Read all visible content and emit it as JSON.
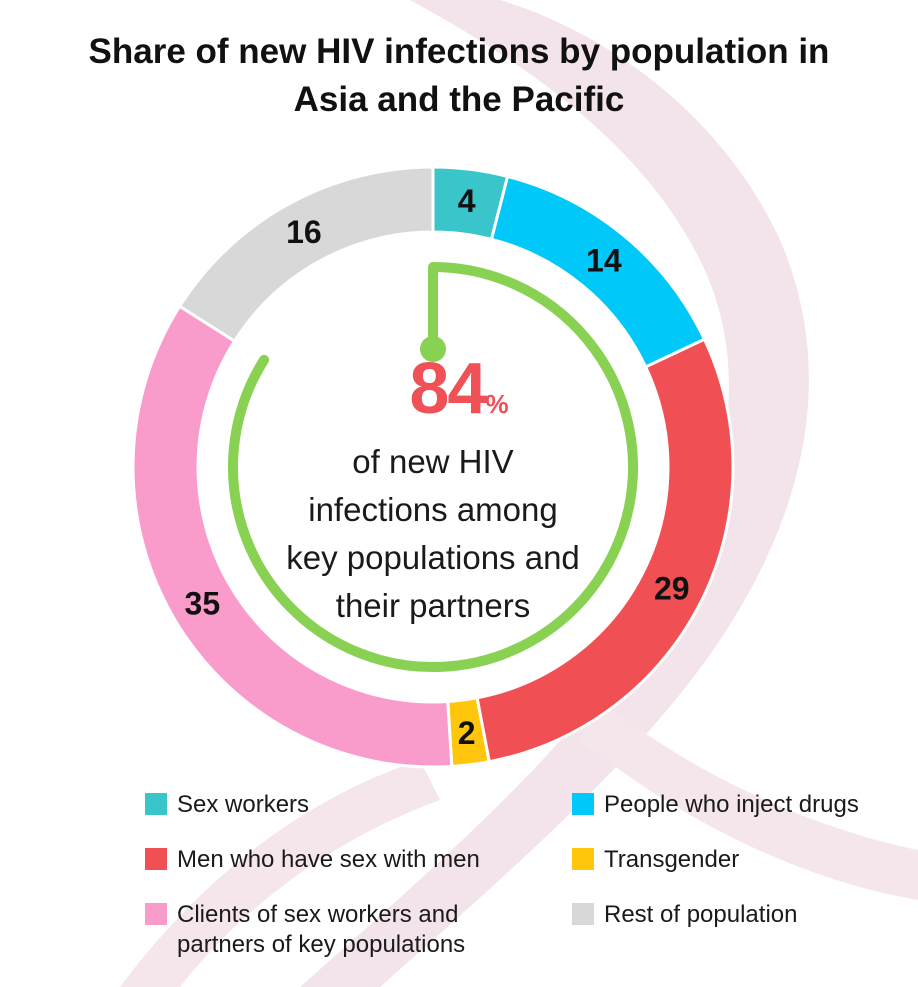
{
  "chart_data": {
    "type": "donut",
    "title_lines": [
      "Share of new HIV infections by population in",
      "Asia and the Pacific"
    ],
    "categories": [
      "Sex workers",
      "People who inject drugs",
      "Men who have sex with men",
      "Transgender",
      "Clients of sex workers and partners of key populations",
      "Rest of population"
    ],
    "values": [
      4,
      14,
      29,
      2,
      35,
      16
    ],
    "colors": [
      "#39c5c9",
      "#00c8f8",
      "#f05053",
      "#ffc60b",
      "#fa9ccb",
      "#d8d8d8"
    ],
    "highlight": {
      "value": "84",
      "unit": "%",
      "text_lines": [
        "of new HIV",
        "infections among",
        "key populations and",
        "their partners"
      ],
      "arc_fraction": 0.84,
      "color": "#89d152",
      "value_color": "#ef5157"
    },
    "legend": [
      {
        "lines": [
          "Sex workers"
        ],
        "color": "#39c5c9"
      },
      {
        "lines": [
          "People who inject drugs"
        ],
        "color": "#00c8f8"
      },
      {
        "lines": [
          "Men who have sex with men"
        ],
        "color": "#f05053"
      },
      {
        "lines": [
          "Transgender"
        ],
        "color": "#ffc60b"
      },
      {
        "lines": [
          "Clients of sex workers and",
          "partners of key populations"
        ],
        "color": "#fa9ccb"
      },
      {
        "lines": [
          "Rest of population"
        ],
        "color": "#d8d8d8"
      }
    ],
    "legend_placement": "bottom"
  }
}
